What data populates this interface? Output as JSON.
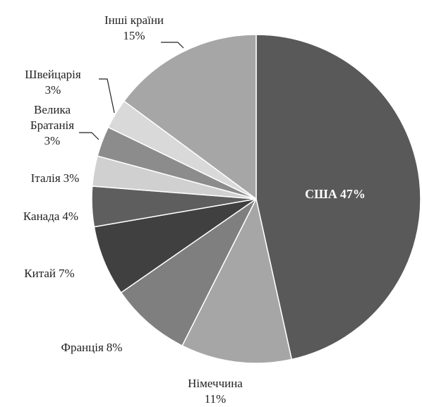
{
  "chart_data": {
    "type": "pie",
    "categories": [
      "США",
      "Німеччина",
      "Франція",
      "Китай",
      "Канада",
      "Італія",
      "Велика Братанія",
      "Швейцарія",
      "Інші країни"
    ],
    "values": [
      47,
      11,
      8,
      7,
      4,
      3,
      3,
      3,
      15
    ],
    "value_labels": [
      "47%",
      "11%",
      "8%",
      "7%",
      "4%",
      "3%",
      "3%",
      "3%",
      "15%"
    ],
    "colors": [
      "#595959",
      "#a6a6a6",
      "#7f7f7f",
      "#404040",
      "#5e5e5e",
      "#d0d0d0",
      "#8c8c8c",
      "#d9d9d9",
      "#a6a6a6"
    ]
  }
}
